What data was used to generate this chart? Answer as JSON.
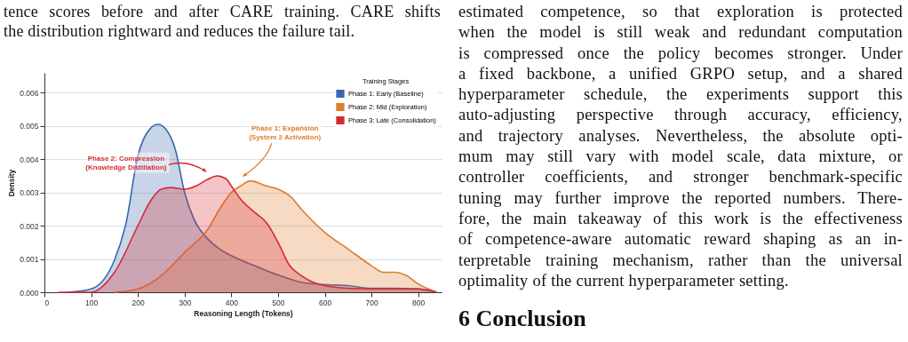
{
  "chart_data": {
    "type": "area",
    "xlabel": "Reasoning Length (Tokens)",
    "ylabel": "Density",
    "legend_title": "Training Stages",
    "series": [
      {
        "name": "Phase 1: Early (Baseline)",
        "color": "#3a67ae",
        "x": [
          50,
          100,
          150,
          175,
          200,
          225,
          243,
          260,
          280,
          300,
          320,
          350,
          375,
          400,
          450,
          500,
          550,
          600,
          650,
          700,
          750,
          800,
          840
        ],
        "values": [
          0,
          0.0001,
          0.00097,
          0.0021,
          0.0041,
          0.0049,
          0.00505,
          0.0049,
          0.0043,
          0.003,
          0.0022,
          0.0016,
          0.0013,
          0.0011,
          0.0008,
          0.00052,
          0.0003,
          0.00023,
          0.0002,
          0.00012,
          0.00012,
          0.0001,
          0
        ]
      },
      {
        "name": "Phase 2: Mid (Exploration)",
        "color": "#e07b2a",
        "x": [
          150,
          200,
          250,
          300,
          350,
          375,
          400,
          420,
          440,
          475,
          500,
          525,
          550,
          600,
          650,
          700,
          725,
          750,
          775,
          800,
          840
        ],
        "values": [
          0,
          0.0001,
          0.0005,
          0.0012,
          0.0019,
          0.0025,
          0.003,
          0.0032,
          0.00335,
          0.0032,
          0.0031,
          0.0029,
          0.0025,
          0.0018,
          0.0013,
          0.0008,
          0.0006,
          0.0006,
          0.0005,
          0.00025,
          0
        ]
      },
      {
        "name": "Phase 3: Late (Consolidation)",
        "color": "#d62a33",
        "x": [
          30,
          100,
          150,
          200,
          225,
          250,
          270,
          300,
          325,
          350,
          370,
          390,
          400,
          420,
          450,
          475,
          500,
          525,
          550,
          575,
          600,
          650,
          700,
          750,
          800,
          840
        ],
        "values": [
          0,
          0,
          0.0006,
          0.002,
          0.0027,
          0.0031,
          0.00315,
          0.0031,
          0.0032,
          0.0034,
          0.0035,
          0.0034,
          0.0032,
          0.0028,
          0.0024,
          0.0021,
          0.0015,
          0.0008,
          0.0005,
          0.0003,
          0.0002,
          0.00012,
          0.0001,
          0.0001,
          0.0001,
          0
        ]
      }
    ],
    "xlim": [
      0,
      850
    ],
    "xticks": [
      0,
      100,
      200,
      300,
      400,
      500,
      600,
      700,
      800
    ],
    "ylim": [
      0,
      0.0066
    ],
    "yticks": [
      {
        "value": 0,
        "label": "0.000"
      },
      {
        "value": 0.001,
        "label": "0.001"
      },
      {
        "value": 0.002,
        "label": "0.002"
      },
      {
        "value": 0.003,
        "label": "0.003"
      },
      {
        "value": 0.004,
        "label": "0.004"
      },
      {
        "value": 0.005,
        "label": "0.005"
      },
      {
        "value": 0.006,
        "label": "0.006"
      }
    ],
    "grid": "y",
    "legend": "top right",
    "annotations": [
      "Phase 2: Compression\n(Knowledge Distillation)",
      "Phase 1: Expansion\n(System 2 Activation)",
      "tence scores before and after CARE training.  CARE shifts\nthe distribution rightward and reduces the failure tail.",
      "estimated competence, so that exploration is protected\nwhen the model is still weak and redundant computation\nis compressed once the policy becomes stronger.  Under\na fixed backbone, a unified GRPO setup, and a shared\nhyperparameter schedule, the experiments support this\nauto-adjusting perspective through accuracy, efficiency,\nand trajectory analyses.  Nevertheless, the absolute opti-\nmum may still vary with model scale, data mixture, or\ncontroller coefficients, and stronger benchmark-specific\ntuning may further improve the reported numbers.  There-\nfore, the main takeaway of this work is the effectiveness\nof competence-aware automatic reward shaping as an in-\nterpretable training mechanism, rather than the universal\noptimality of the current hyperparameter setting.",
      "6    Conclusion"
    ]
  }
}
